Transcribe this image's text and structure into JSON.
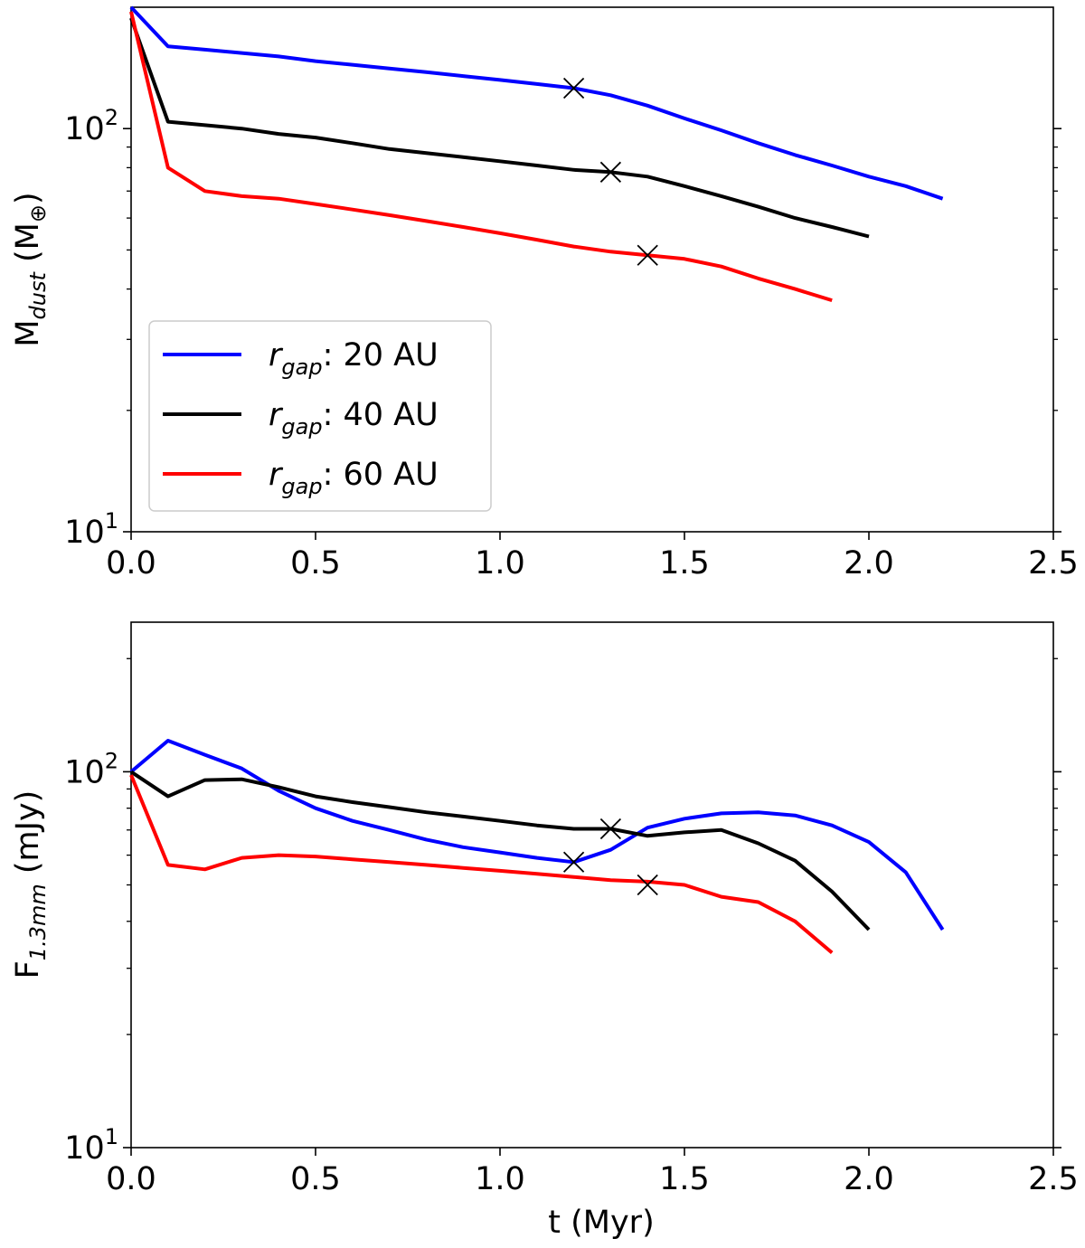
{
  "chart_data": [
    {
      "type": "line",
      "y_scale": "log",
      "xlim": [
        0,
        2.5
      ],
      "ylim": [
        10,
        200
      ],
      "grid": false,
      "legend_position": "lower-left",
      "xticks": [
        "0.0",
        "0.5",
        "1.0",
        "1.5",
        "2.0",
        "2.5"
      ],
      "yticks": [
        {
          "base": "10",
          "exp": "1",
          "value": 10
        },
        {
          "base": "10",
          "exp": "2",
          "value": 100
        }
      ],
      "ylabel": {
        "main": "M",
        "sub": "dust",
        "unit": " (M",
        "unit_sub": "⊕",
        "close": ")"
      },
      "xlabel": "",
      "series": [
        {
          "name": "r_gap: 20 AU",
          "label_var": "r",
          "label_sub": "gap",
          "label_text": ": 20 AU",
          "color": "#0000ff",
          "x": [
            0.0,
            0.1,
            0.2,
            0.3,
            0.4,
            0.5,
            0.6,
            0.7,
            0.8,
            0.9,
            1.0,
            1.1,
            1.2,
            1.3,
            1.4,
            1.5,
            1.6,
            1.7,
            1.8,
            1.9,
            2.0,
            2.1,
            2.2
          ],
          "y": [
            200,
            160,
            157,
            154,
            151,
            147,
            144,
            141,
            138,
            135,
            132,
            129,
            126,
            121,
            114,
            106,
            99,
            92,
            86,
            81,
            76,
            72,
            67
          ],
          "marker": {
            "x": 1.2,
            "y": 126
          }
        },
        {
          "name": "r_gap: 40 AU",
          "label_var": "r",
          "label_sub": "gap",
          "label_text": ": 40 AU",
          "color": "#000000",
          "x": [
            0.0,
            0.1,
            0.2,
            0.3,
            0.4,
            0.5,
            0.6,
            0.7,
            0.8,
            0.9,
            1.0,
            1.1,
            1.2,
            1.3,
            1.4,
            1.5,
            1.6,
            1.7,
            1.8,
            1.9,
            2.0
          ],
          "y": [
            188,
            104,
            102,
            100,
            97,
            95,
            92,
            89,
            87,
            85,
            83,
            81,
            79,
            78,
            76,
            72,
            68,
            64,
            60,
            57,
            54
          ],
          "marker": {
            "x": 1.3,
            "y": 78
          }
        },
        {
          "name": "r_gap: 60 AU",
          "label_var": "r",
          "label_sub": "gap",
          "label_text": ": 60 AU",
          "color": "#ff0000",
          "x": [
            0.0,
            0.1,
            0.2,
            0.3,
            0.4,
            0.5,
            0.6,
            0.7,
            0.8,
            0.9,
            1.0,
            1.1,
            1.2,
            1.3,
            1.4,
            1.5,
            1.6,
            1.7,
            1.8,
            1.9
          ],
          "y": [
            195,
            80,
            70,
            68,
            67,
            65,
            63,
            61,
            59,
            57,
            55,
            53,
            51,
            49.5,
            48.5,
            47.5,
            45.5,
            42.5,
            40,
            37.5
          ],
          "marker": {
            "x": 1.4,
            "y": 48.5
          }
        }
      ]
    },
    {
      "type": "line",
      "y_scale": "log",
      "xlim": [
        0,
        2.5
      ],
      "ylim": [
        10,
        250
      ],
      "grid": false,
      "xticks": [
        "0.0",
        "0.5",
        "1.0",
        "1.5",
        "2.0",
        "2.5"
      ],
      "yticks": [
        {
          "base": "10",
          "exp": "1",
          "value": 10
        },
        {
          "base": "10",
          "exp": "2",
          "value": 100
        }
      ],
      "ylabel": {
        "main": "F",
        "sub": "1.3mm",
        "unit": " (mJy)"
      },
      "xlabel": "t (Myr)",
      "series": [
        {
          "color": "#0000ff",
          "x": [
            0.0,
            0.1,
            0.2,
            0.3,
            0.4,
            0.5,
            0.6,
            0.7,
            0.8,
            0.9,
            1.0,
            1.1,
            1.2,
            1.3,
            1.4,
            1.5,
            1.6,
            1.7,
            1.8,
            1.9,
            2.0,
            2.1,
            2.2
          ],
          "y": [
            100,
            121,
            111,
            102,
            89,
            80,
            74,
            70,
            66,
            63,
            61,
            59,
            57.5,
            62,
            71,
            75,
            77.5,
            78,
            76.5,
            72,
            65,
            54,
            38
          ],
          "marker": {
            "x": 1.2,
            "y": 57.5
          }
        },
        {
          "color": "#000000",
          "x": [
            0.0,
            0.1,
            0.2,
            0.3,
            0.4,
            0.5,
            0.6,
            0.7,
            0.8,
            0.9,
            1.0,
            1.1,
            1.2,
            1.3,
            1.4,
            1.5,
            1.6,
            1.7,
            1.8,
            1.9,
            2.0
          ],
          "y": [
            100,
            86,
            95,
            95.5,
            91,
            86,
            83,
            80.5,
            78,
            76,
            74,
            72,
            70.5,
            70.5,
            67.5,
            69,
            70,
            64.5,
            58,
            48,
            38
          ],
          "marker": {
            "x": 1.3,
            "y": 70.5
          }
        },
        {
          "color": "#ff0000",
          "x": [
            0.0,
            0.1,
            0.2,
            0.3,
            0.4,
            0.5,
            0.6,
            0.7,
            0.8,
            0.9,
            1.0,
            1.1,
            1.2,
            1.3,
            1.4,
            1.5,
            1.6,
            1.7,
            1.8,
            1.9
          ],
          "y": [
            98,
            56.5,
            55,
            59,
            60,
            59.5,
            58.5,
            57.5,
            56.5,
            55.5,
            54.5,
            53.5,
            52.5,
            51.5,
            51,
            50,
            46.5,
            45,
            40,
            33
          ],
          "marker": {
            "x": 1.4,
            "y": 50
          }
        }
      ]
    }
  ]
}
